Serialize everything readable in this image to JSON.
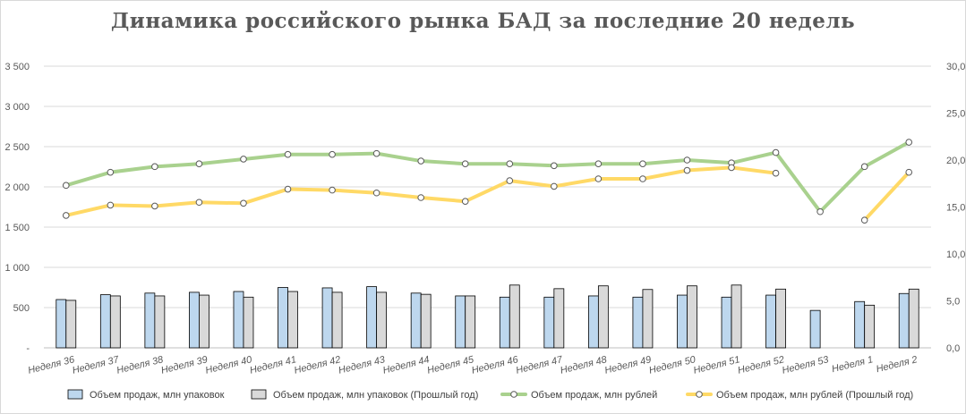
{
  "chart_data": {
    "type": "bar",
    "title": "Динамика российского рынка БАД за последние 20 недель",
    "categories": [
      "Неделя 36",
      "Неделя 37",
      "Неделя 38",
      "Неделя 39",
      "Неделя 40",
      "Неделя 41",
      "Неделя 42",
      "Неделя 43",
      "Неделя 44",
      "Неделя 45",
      "Неделя 46",
      "Неделя 47",
      "Неделя 48",
      "Неделя 49",
      "Неделя 50",
      "Неделя 51",
      "Неделя 52",
      "Неделя 53",
      "Неделя 1",
      "Неделя 2"
    ],
    "left_axis": {
      "ylim": [
        0,
        3500
      ],
      "ticks": [
        0,
        500,
        1000,
        1500,
        2000,
        2500,
        3000,
        3500
      ],
      "tick_labels": [
        "-",
        "500",
        "1 000",
        "1 500",
        "2 000",
        "2 500",
        "3 000",
        "3 500"
      ]
    },
    "right_axis": {
      "ylim": [
        0,
        30
      ],
      "ticks": [
        0,
        5,
        10,
        15,
        20,
        25,
        30
      ],
      "tick_labels": [
        "0,0",
        "5,0",
        "10,0",
        "15,0",
        "20,0",
        "25,0",
        "30,0"
      ]
    },
    "series": [
      {
        "name": "Объем продаж, млн упаковок",
        "kind": "bar",
        "axis": "left",
        "color": "#bdd7ee",
        "stroke": "#000000",
        "values": [
          600,
          660,
          680,
          690,
          700,
          750,
          745,
          760,
          680,
          645,
          630,
          630,
          645,
          630,
          655,
          630,
          655,
          465,
          575,
          675
        ]
      },
      {
        "name": "Объем продаж, млн упаковок (Прошлый год)",
        "kind": "bar",
        "axis": "left",
        "color": "#d9d9d9",
        "stroke": "#000000",
        "values": [
          590,
          645,
          645,
          655,
          630,
          700,
          690,
          690,
          665,
          645,
          780,
          735,
          770,
          725,
          770,
          780,
          730,
          null,
          530,
          730
        ]
      },
      {
        "name": "Объем продаж, млн рублей",
        "kind": "line",
        "axis": "right",
        "color": "#a9d18e",
        "values": [
          17.3,
          18.7,
          19.3,
          19.6,
          20.1,
          20.6,
          20.6,
          20.7,
          19.9,
          19.6,
          19.6,
          19.4,
          19.6,
          19.6,
          20.0,
          19.7,
          20.8,
          14.5,
          19.3,
          21.9
        ]
      },
      {
        "name": "Объем продаж, млн рублей (Прошлый год)",
        "kind": "line",
        "axis": "right",
        "color": "#ffd966",
        "values": [
          14.1,
          15.2,
          15.1,
          15.5,
          15.4,
          16.9,
          16.8,
          16.5,
          16.0,
          15.6,
          17.8,
          17.2,
          18.0,
          18.0,
          18.9,
          19.2,
          18.6,
          null,
          13.6,
          18.7
        ]
      }
    ]
  }
}
